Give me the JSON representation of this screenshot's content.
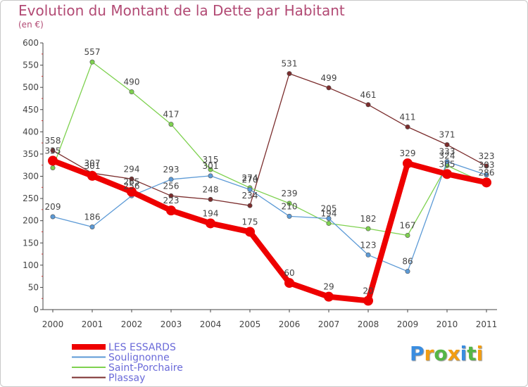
{
  "chart_data": {
    "type": "line",
    "title": "Evolution du Montant de la Dette par Habitant",
    "subtitle": "(en €)",
    "x": [
      "2000",
      "2001",
      "2002",
      "2003",
      "2004",
      "2005",
      "2006",
      "2007",
      "2008",
      "2009",
      "2010",
      "2011"
    ],
    "ylim": [
      0,
      600
    ],
    "yticks": [
      0,
      50,
      100,
      150,
      200,
      250,
      300,
      350,
      400,
      450,
      500,
      550,
      600
    ],
    "grid": false,
    "legend_position": "bottom-left",
    "series": [
      {
        "name": "Plassay",
        "color": "#7b2d2d",
        "width": 1.3,
        "values": [
          358,
          307,
          294,
          256,
          248,
          234,
          531,
          499,
          461,
          411,
          371,
          323
        ],
        "labels": [
          "358",
          "307",
          "294",
          "256",
          "248",
          "234",
          "531",
          "499",
          "461",
          "411",
          "371",
          "323"
        ]
      },
      {
        "name": "Saint-Porchaire",
        "color": "#7ed14f",
        "width": 1.3,
        "values": [
          319,
          557,
          490,
          417,
          315,
          274,
          239,
          194,
          182,
          167,
          324,
          283
        ],
        "labels": [
          "",
          "557",
          "490",
          "417",
          "315",
          "274",
          "239",
          "194",
          "182",
          "167",
          "324",
          ""
        ]
      },
      {
        "name": "Soulignonne",
        "color": "#5c9ad6",
        "width": 1.3,
        "values": [
          209,
          186,
          256,
          293,
          301,
          270,
          210,
          205,
          123,
          86,
          333,
          303
        ],
        "labels": [
          "209",
          "186",
          "256",
          "293",
          "301",
          "270",
          "210",
          "205",
          "123",
          "86",
          "333",
          "303"
        ]
      },
      {
        "name": "LES ESSARDS",
        "color": "#ee0000",
        "width": 8,
        "values": [
          335,
          301,
          265,
          223,
          194,
          175,
          60,
          29,
          20,
          329,
          305,
          286
        ],
        "labels": [
          "335",
          "301",
          "265",
          "223",
          "194",
          "175",
          "60",
          "29",
          "20",
          "329",
          "305",
          "286"
        ]
      }
    ]
  },
  "brand": {
    "letters": [
      "P",
      "r",
      "o",
      "x",
      "i",
      "t",
      "i"
    ],
    "colors": [
      "#3a8de0",
      "#f29d12",
      "#55b646",
      "#f29d12",
      "#3a8de0",
      "#55b646",
      "#f29d12"
    ]
  }
}
